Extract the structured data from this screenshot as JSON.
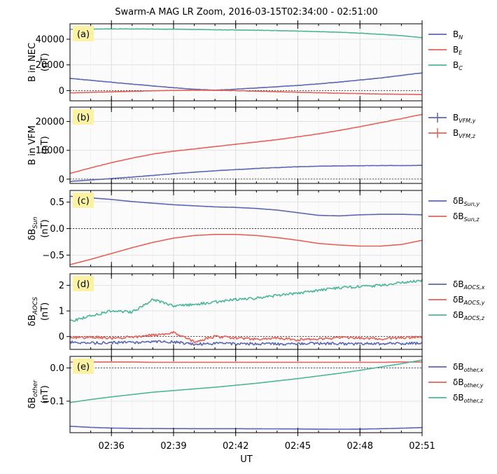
{
  "title": "Swarm-A MAG LR Zoom, 2016-03-15T02:34:00 - 02:51:00",
  "xlabel": "UT",
  "x_ticks": [
    "02:36",
    "02:39",
    "02:42",
    "02:45",
    "02:48",
    "02:51"
  ],
  "colors": {
    "blue": "#5a67b2",
    "red": "#e5625a",
    "green": "#4db69a",
    "label_bg": "#fbf3a3"
  },
  "chart_data": [
    {
      "type": "line",
      "panel_label": "(a)",
      "ylabel_main": "B in NEC",
      "ylabel_unit": "(nT)",
      "xlim": [
        "02:34",
        "02:51"
      ],
      "ylim": [
        -8000,
        52000
      ],
      "yticks": [
        0,
        20000,
        40000
      ],
      "x": [
        "02:34",
        "02:35",
        "02:36",
        "02:37",
        "02:38",
        "02:39",
        "02:40",
        "02:41",
        "02:42",
        "02:43",
        "02:44",
        "02:45",
        "02:46",
        "02:47",
        "02:48",
        "02:49",
        "02:50",
        "02:51"
      ],
      "series": [
        {
          "name": "B",
          "sub": "N",
          "color": "#5a67b2",
          "values": [
            9500,
            8000,
            6500,
            5000,
            3600,
            2200,
            1000,
            300,
            1000,
            2000,
            3000,
            4000,
            5200,
            6600,
            8200,
            9800,
            11800,
            13800
          ]
        },
        {
          "name": "B",
          "sub": "E",
          "color": "#e5625a",
          "values": [
            -1800,
            -1400,
            -1000,
            -600,
            -200,
            100,
            300,
            200,
            -100,
            -500,
            -900,
            -1300,
            -1700,
            -2100,
            -2400,
            -2700,
            -2900,
            -3100
          ]
        },
        {
          "name": "B",
          "sub": "C",
          "color": "#4db69a",
          "values": [
            47800,
            47900,
            48000,
            48000,
            47900,
            47800,
            47600,
            47400,
            47200,
            47000,
            46700,
            46300,
            45900,
            45400,
            44700,
            43800,
            42800,
            41200
          ]
        }
      ]
    },
    {
      "type": "line",
      "panel_label": "(b)",
      "ylabel_main": "B in VFM",
      "ylabel_unit": "(nT)",
      "xlim": [
        "02:34",
        "02:51"
      ],
      "ylim": [
        -1500,
        25000
      ],
      "yticks": [
        0,
        10000,
        20000
      ],
      "x": [
        "02:34",
        "02:35",
        "02:36",
        "02:37",
        "02:38",
        "02:39",
        "02:40",
        "02:41",
        "02:42",
        "02:43",
        "02:44",
        "02:45",
        "02:46",
        "02:47",
        "02:48",
        "02:49",
        "02:50",
        "02:51"
      ],
      "series": [
        {
          "name": "B",
          "sub": "VFM,y",
          "color": "#5a67b2",
          "errorbar": true,
          "values": [
            -800,
            -300,
            200,
            700,
            1300,
            1900,
            2400,
            2900,
            3300,
            3700,
            4000,
            4300,
            4500,
            4600,
            4650,
            4700,
            4700,
            4750
          ]
        },
        {
          "name": "B",
          "sub": "VFM,z",
          "color": "#e5625a",
          "errorbar": true,
          "values": [
            2000,
            3900,
            5700,
            7300,
            8700,
            9700,
            10500,
            11300,
            12100,
            12900,
            13700,
            14700,
            15700,
            16900,
            18200,
            19600,
            21000,
            22500
          ]
        }
      ]
    },
    {
      "type": "line",
      "panel_label": "(c)",
      "ylabel_main": "δB",
      "ylabel_sub": "Sun",
      "ylabel_unit": "(nT)",
      "xlim": [
        "02:34",
        "02:51"
      ],
      "ylim": [
        -0.72,
        0.72
      ],
      "yticks": [
        -0.5,
        0.0,
        0.5
      ],
      "ytick_labels": [
        "−0.5",
        "0.0",
        "0.5"
      ],
      "x": [
        "02:34",
        "02:35",
        "02:36",
        "02:37",
        "02:38",
        "02:39",
        "02:40",
        "02:41",
        "02:42",
        "02:43",
        "02:44",
        "02:45",
        "02:46",
        "02:47",
        "02:48",
        "02:49",
        "02:50",
        "02:51"
      ],
      "series": [
        {
          "name": "δB",
          "sub": "Sun,y",
          "color": "#5a67b2",
          "values": [
            0.61,
            0.58,
            0.55,
            0.51,
            0.48,
            0.45,
            0.43,
            0.41,
            0.4,
            0.38,
            0.35,
            0.3,
            0.25,
            0.24,
            0.26,
            0.27,
            0.27,
            0.26
          ]
        },
        {
          "name": "δB",
          "sub": "Sun,z",
          "color": "#e5625a",
          "values": [
            -0.68,
            -0.58,
            -0.47,
            -0.36,
            -0.26,
            -0.18,
            -0.13,
            -0.11,
            -0.11,
            -0.13,
            -0.17,
            -0.22,
            -0.28,
            -0.31,
            -0.33,
            -0.33,
            -0.3,
            -0.22
          ]
        }
      ]
    },
    {
      "type": "line",
      "panel_label": "(d)",
      "ylabel_main": "δB",
      "ylabel_sub": "AOCS",
      "ylabel_unit": "(nT)",
      "xlim": [
        "02:34",
        "02:51"
      ],
      "ylim": [
        -0.5,
        2.45
      ],
      "yticks": [
        0,
        1,
        2
      ],
      "x": [
        "02:34",
        "02:35",
        "02:36",
        "02:37",
        "02:38",
        "02:39",
        "02:40",
        "02:41",
        "02:42",
        "02:43",
        "02:44",
        "02:45",
        "02:46",
        "02:47",
        "02:48",
        "02:49",
        "02:50",
        "02:51"
      ],
      "series": [
        {
          "name": "δB",
          "sub": "AOCS,x",
          "color": "#5a67b2",
          "values": [
            -0.22,
            -0.25,
            -0.24,
            -0.23,
            -0.2,
            -0.21,
            -0.3,
            -0.27,
            -0.28,
            -0.28,
            -0.29,
            -0.28,
            -0.27,
            -0.28,
            -0.28,
            -0.28,
            -0.27,
            -0.26
          ]
        },
        {
          "name": "δB",
          "sub": "AOCS,y",
          "color": "#e5625a",
          "values": [
            -0.05,
            -0.02,
            -0.05,
            -0.02,
            0.05,
            0.15,
            -0.2,
            0.0,
            -0.05,
            -0.1,
            -0.05,
            -0.12,
            -0.1,
            -0.05,
            -0.05,
            -0.1,
            -0.05,
            0.0
          ]
        },
        {
          "name": "δB",
          "sub": "AOCS,z",
          "color": "#4db69a",
          "values": [
            0.6,
            0.8,
            1.0,
            0.95,
            1.45,
            1.2,
            1.25,
            1.35,
            1.45,
            1.5,
            1.6,
            1.7,
            1.8,
            1.9,
            1.95,
            2.0,
            2.1,
            2.2
          ]
        }
      ]
    },
    {
      "type": "line",
      "panel_label": "(e)",
      "ylabel_main": "δB",
      "ylabel_sub": "other",
      "ylabel_unit": "(nT)",
      "xlim": [
        "02:34",
        "02:51"
      ],
      "ylim": [
        -0.195,
        0.035
      ],
      "yticks": [
        0.0,
        -0.1
      ],
      "ytick_labels": [
        "0.0",
        "−0.1"
      ],
      "x": [
        "02:34",
        "02:35",
        "02:36",
        "02:37",
        "02:38",
        "02:39",
        "02:40",
        "02:41",
        "02:42",
        "02:43",
        "02:44",
        "02:45",
        "02:46",
        "02:47",
        "02:48",
        "02:49",
        "02:50",
        "02:51"
      ],
      "series": [
        {
          "name": "δB",
          "sub": "other,x",
          "color": "#5a67b2",
          "values": [
            -0.1755,
            -0.179,
            -0.181,
            -0.182,
            -0.1825,
            -0.1828,
            -0.1829,
            -0.183,
            -0.183,
            -0.1832,
            -0.1835,
            -0.1838,
            -0.1842,
            -0.1845,
            -0.1842,
            -0.183,
            -0.1815,
            -0.1795
          ]
        },
        {
          "name": "δB",
          "sub": "other,y",
          "color": "#e5625a",
          "values": [
            0.018,
            0.018,
            0.018,
            0.018,
            0.017,
            0.017,
            0.017,
            0.017,
            0.017,
            0.017,
            0.017,
            0.017,
            0.017,
            0.017,
            0.017,
            0.017,
            0.018,
            0.018
          ]
        },
        {
          "name": "δB",
          "sub": "other,z",
          "color": "#4db69a",
          "values": [
            -0.104,
            -0.095,
            -0.087,
            -0.08,
            -0.073,
            -0.068,
            -0.063,
            -0.058,
            -0.052,
            -0.046,
            -0.039,
            -0.032,
            -0.024,
            -0.016,
            -0.007,
            0.003,
            0.013,
            0.024
          ]
        }
      ]
    }
  ]
}
